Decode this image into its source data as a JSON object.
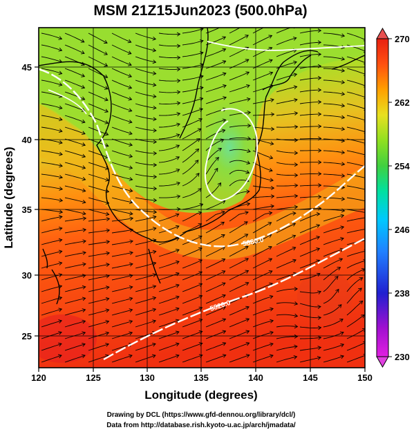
{
  "title": "MSM 21Z15Jun2023 (500.0hPa)",
  "xlabel": "Longitude (degrees)",
  "ylabel": "Latitude  (degrees)",
  "x_ticks": [
    "120",
    "125",
    "130",
    "135",
    "140",
    "145",
    "150"
  ],
  "y_ticks": [
    "25",
    "30",
    "35",
    "40",
    "45"
  ],
  "colorbar": {
    "ticks": [
      "270",
      "262",
      "254",
      "246",
      "238",
      "230"
    ],
    "min": 230,
    "max": 270,
    "colors": [
      "#e020e0",
      "#a010d0",
      "#2020d0",
      "#2080ff",
      "#00c8ff",
      "#00e0a0",
      "#40d040",
      "#90e020",
      "#e8e020",
      "#ffa000",
      "#ff5010",
      "#e82010"
    ]
  },
  "contour_labels": [
    "5880.0",
    "5820.0"
  ],
  "credits": {
    "line1": "Drawing by DCL (https://www.gfd-dennou.org/library/dcl/)",
    "line2": "Data from http://database.rish.kyoto-u.ac.jp/arch/jmadata/"
  },
  "map": {
    "lon_range": [
      120,
      150
    ],
    "lat_range": [
      22.5,
      47.5
    ],
    "field": "temperature (K) at 500.0hPa with streamlines and geopotential height contours"
  }
}
